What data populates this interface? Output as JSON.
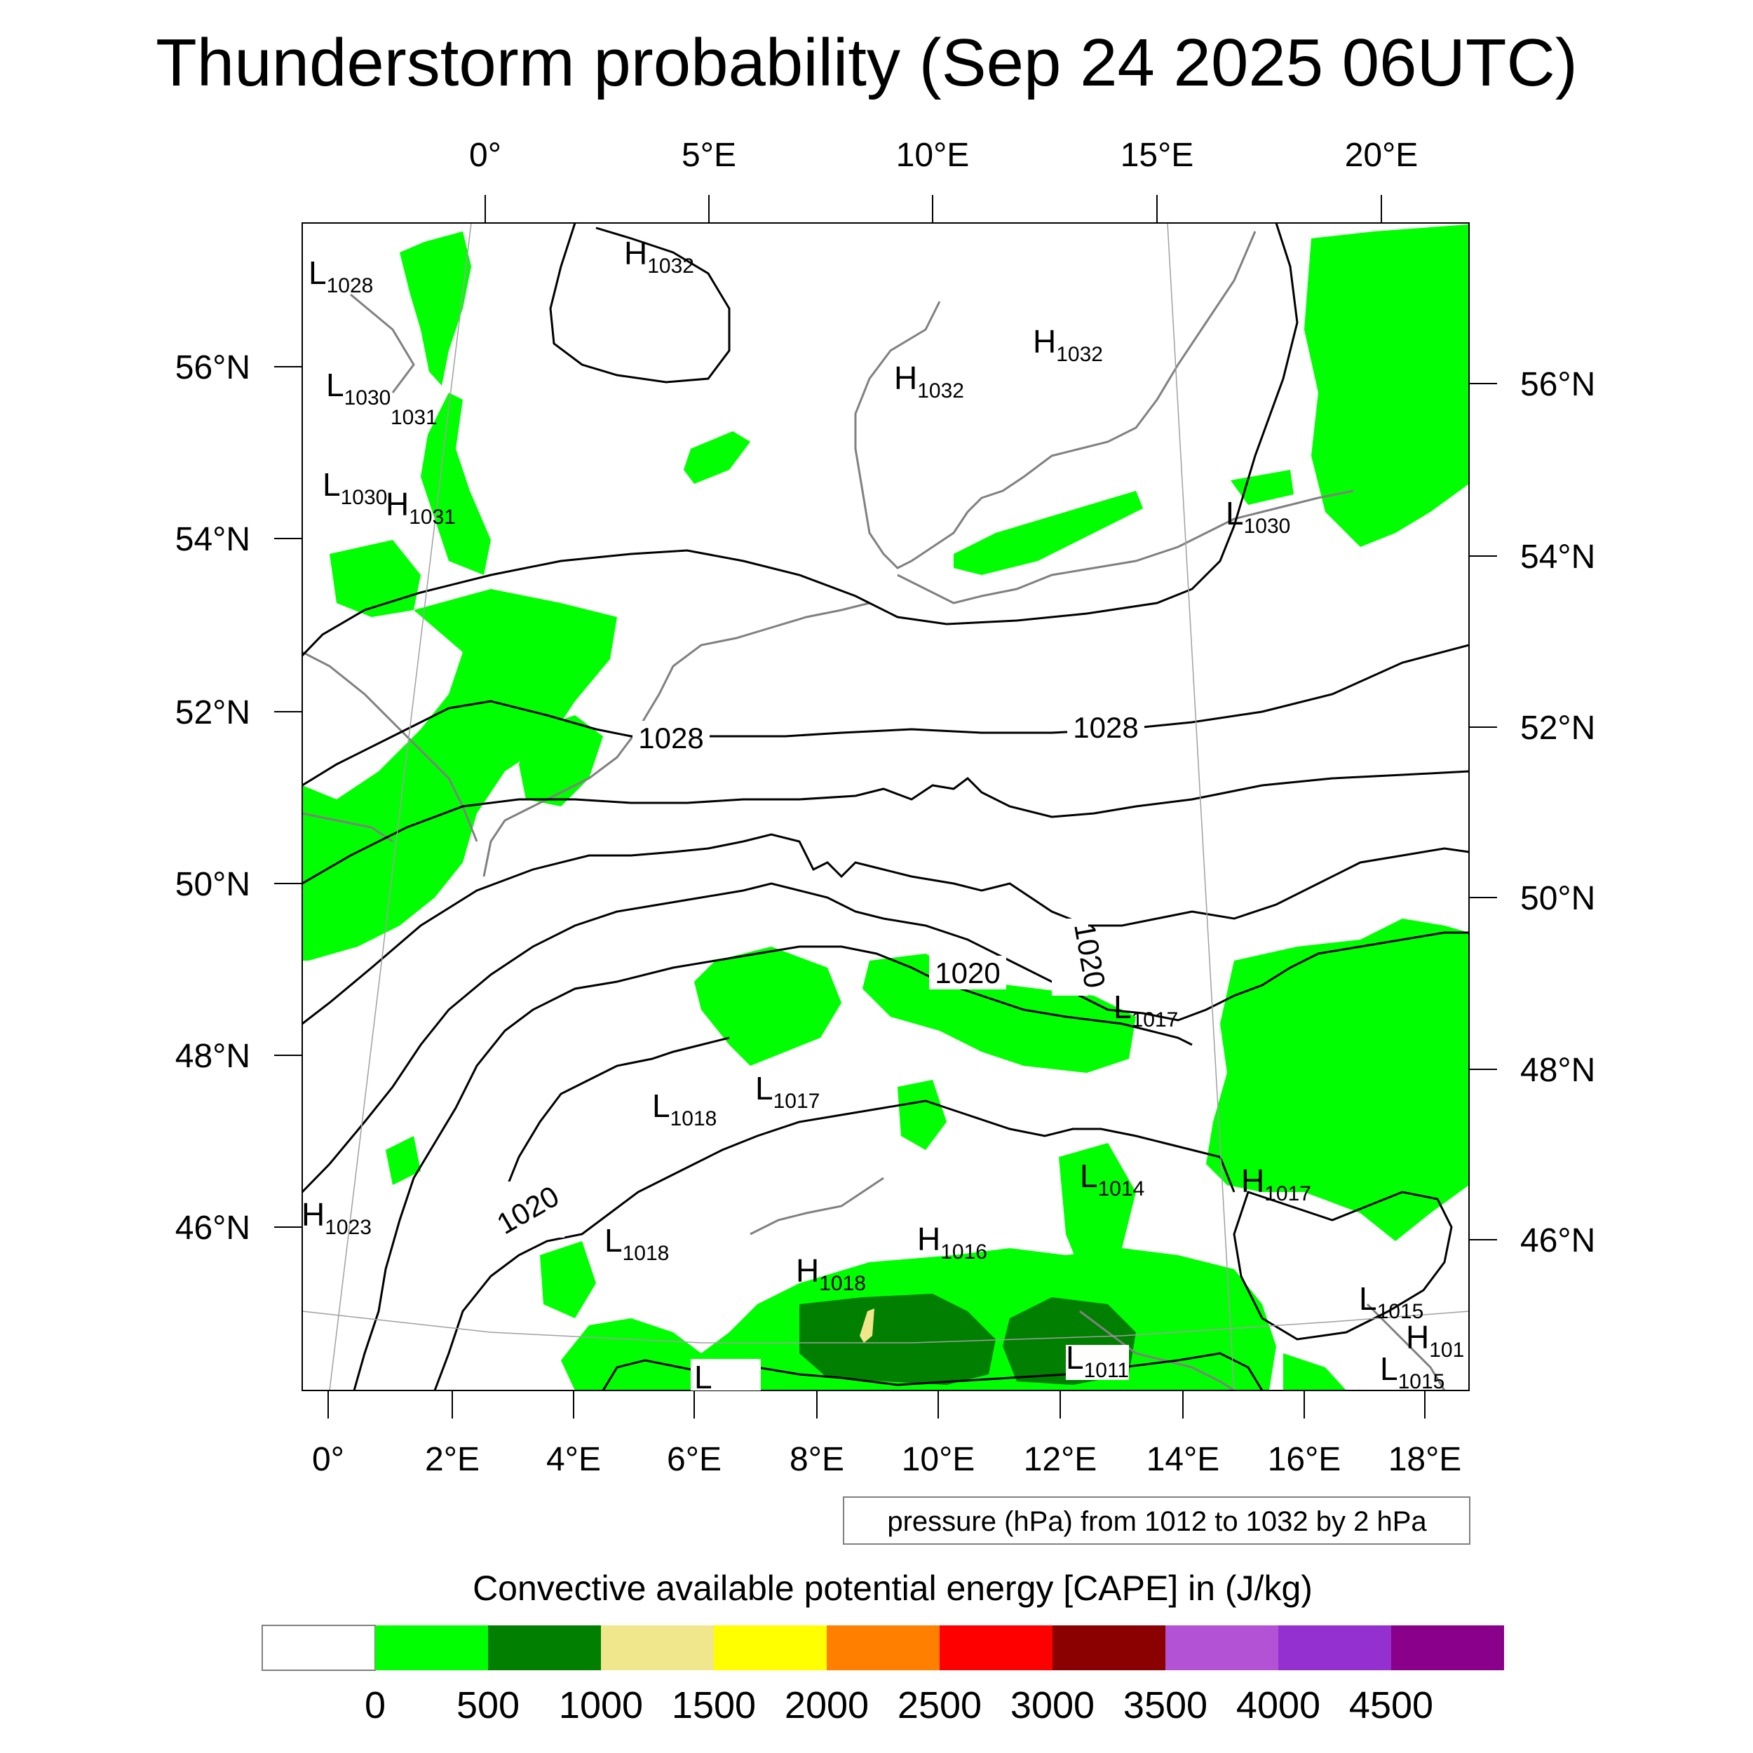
{
  "title": "Thunderstorm probability (Sep 24 2025 06UTC)",
  "colors": {
    "cape_green": "#00ff00",
    "cape_darkgreen": "#007f00",
    "cape_khaki": "#f0e68c",
    "coast": "#808080",
    "isobar": "#000000"
  },
  "top_lon_labels": [
    "0°",
    "5°E",
    "10°E",
    "15°E",
    "20°E"
  ],
  "bottom_lon_labels": [
    "0°",
    "2°E",
    "4°E",
    "6°E",
    "8°E",
    "10°E",
    "12°E",
    "14°E",
    "16°E",
    "18°E"
  ],
  "left_lat_labels": [
    "56°N",
    "54°N",
    "52°N",
    "50°N",
    "48°N",
    "46°N"
  ],
  "right_lat_labels": [
    "56°N",
    "54°N",
    "52°N",
    "50°N",
    "48°N",
    "46°N"
  ],
  "contour_labels": [
    "1028",
    "1028",
    "1020",
    "1020",
    "1020"
  ],
  "pressure_centers": [
    {
      "t": "H",
      "v": "1032"
    },
    {
      "t": "L",
      "v": "1028"
    },
    {
      "t": "H",
      "v": "1032"
    },
    {
      "t": "H",
      "v": "1032"
    },
    {
      "t": "L",
      "v": "1030"
    },
    {
      "t": "",
      "v": "1031"
    },
    {
      "t": "L",
      "v": "1030"
    },
    {
      "t": "H",
      "v": "1031"
    },
    {
      "t": "L",
      "v": "1030"
    },
    {
      "t": "L",
      "v": "1017"
    },
    {
      "t": "L",
      "v": "1018"
    },
    {
      "t": "L",
      "v": "1017"
    },
    {
      "t": "L",
      "v": "1014"
    },
    {
      "t": "H",
      "v": "1017"
    },
    {
      "t": "H",
      "v": "1023"
    },
    {
      "t": "L",
      "v": "1018"
    },
    {
      "t": "H",
      "v": "1016"
    },
    {
      "t": "H",
      "v": "1018"
    },
    {
      "t": "L",
      "v": "1015"
    },
    {
      "t": "H",
      "v": "101"
    },
    {
      "t": "L",
      "v": "1015"
    },
    {
      "t": "L",
      "v": "1011"
    },
    {
      "t": "L",
      "v": ""
    }
  ],
  "contour_note": "pressure (hPa) from 1012 to 1032 by 2 hPa",
  "legend": {
    "title": "Convective available potential energy [CAPE] in (J/kg)",
    "colors": [
      "#ffffff",
      "#00ff00",
      "#007f00",
      "#f0e68c",
      "#ffff00",
      "#ff8000",
      "#ff0000",
      "#8b0000",
      "#b452d6",
      "#9430d0",
      "#8a008a"
    ],
    "labels": [
      "0",
      "500",
      "1000",
      "1500",
      "2000",
      "2500",
      "3000",
      "3500",
      "4000",
      "4500"
    ]
  }
}
